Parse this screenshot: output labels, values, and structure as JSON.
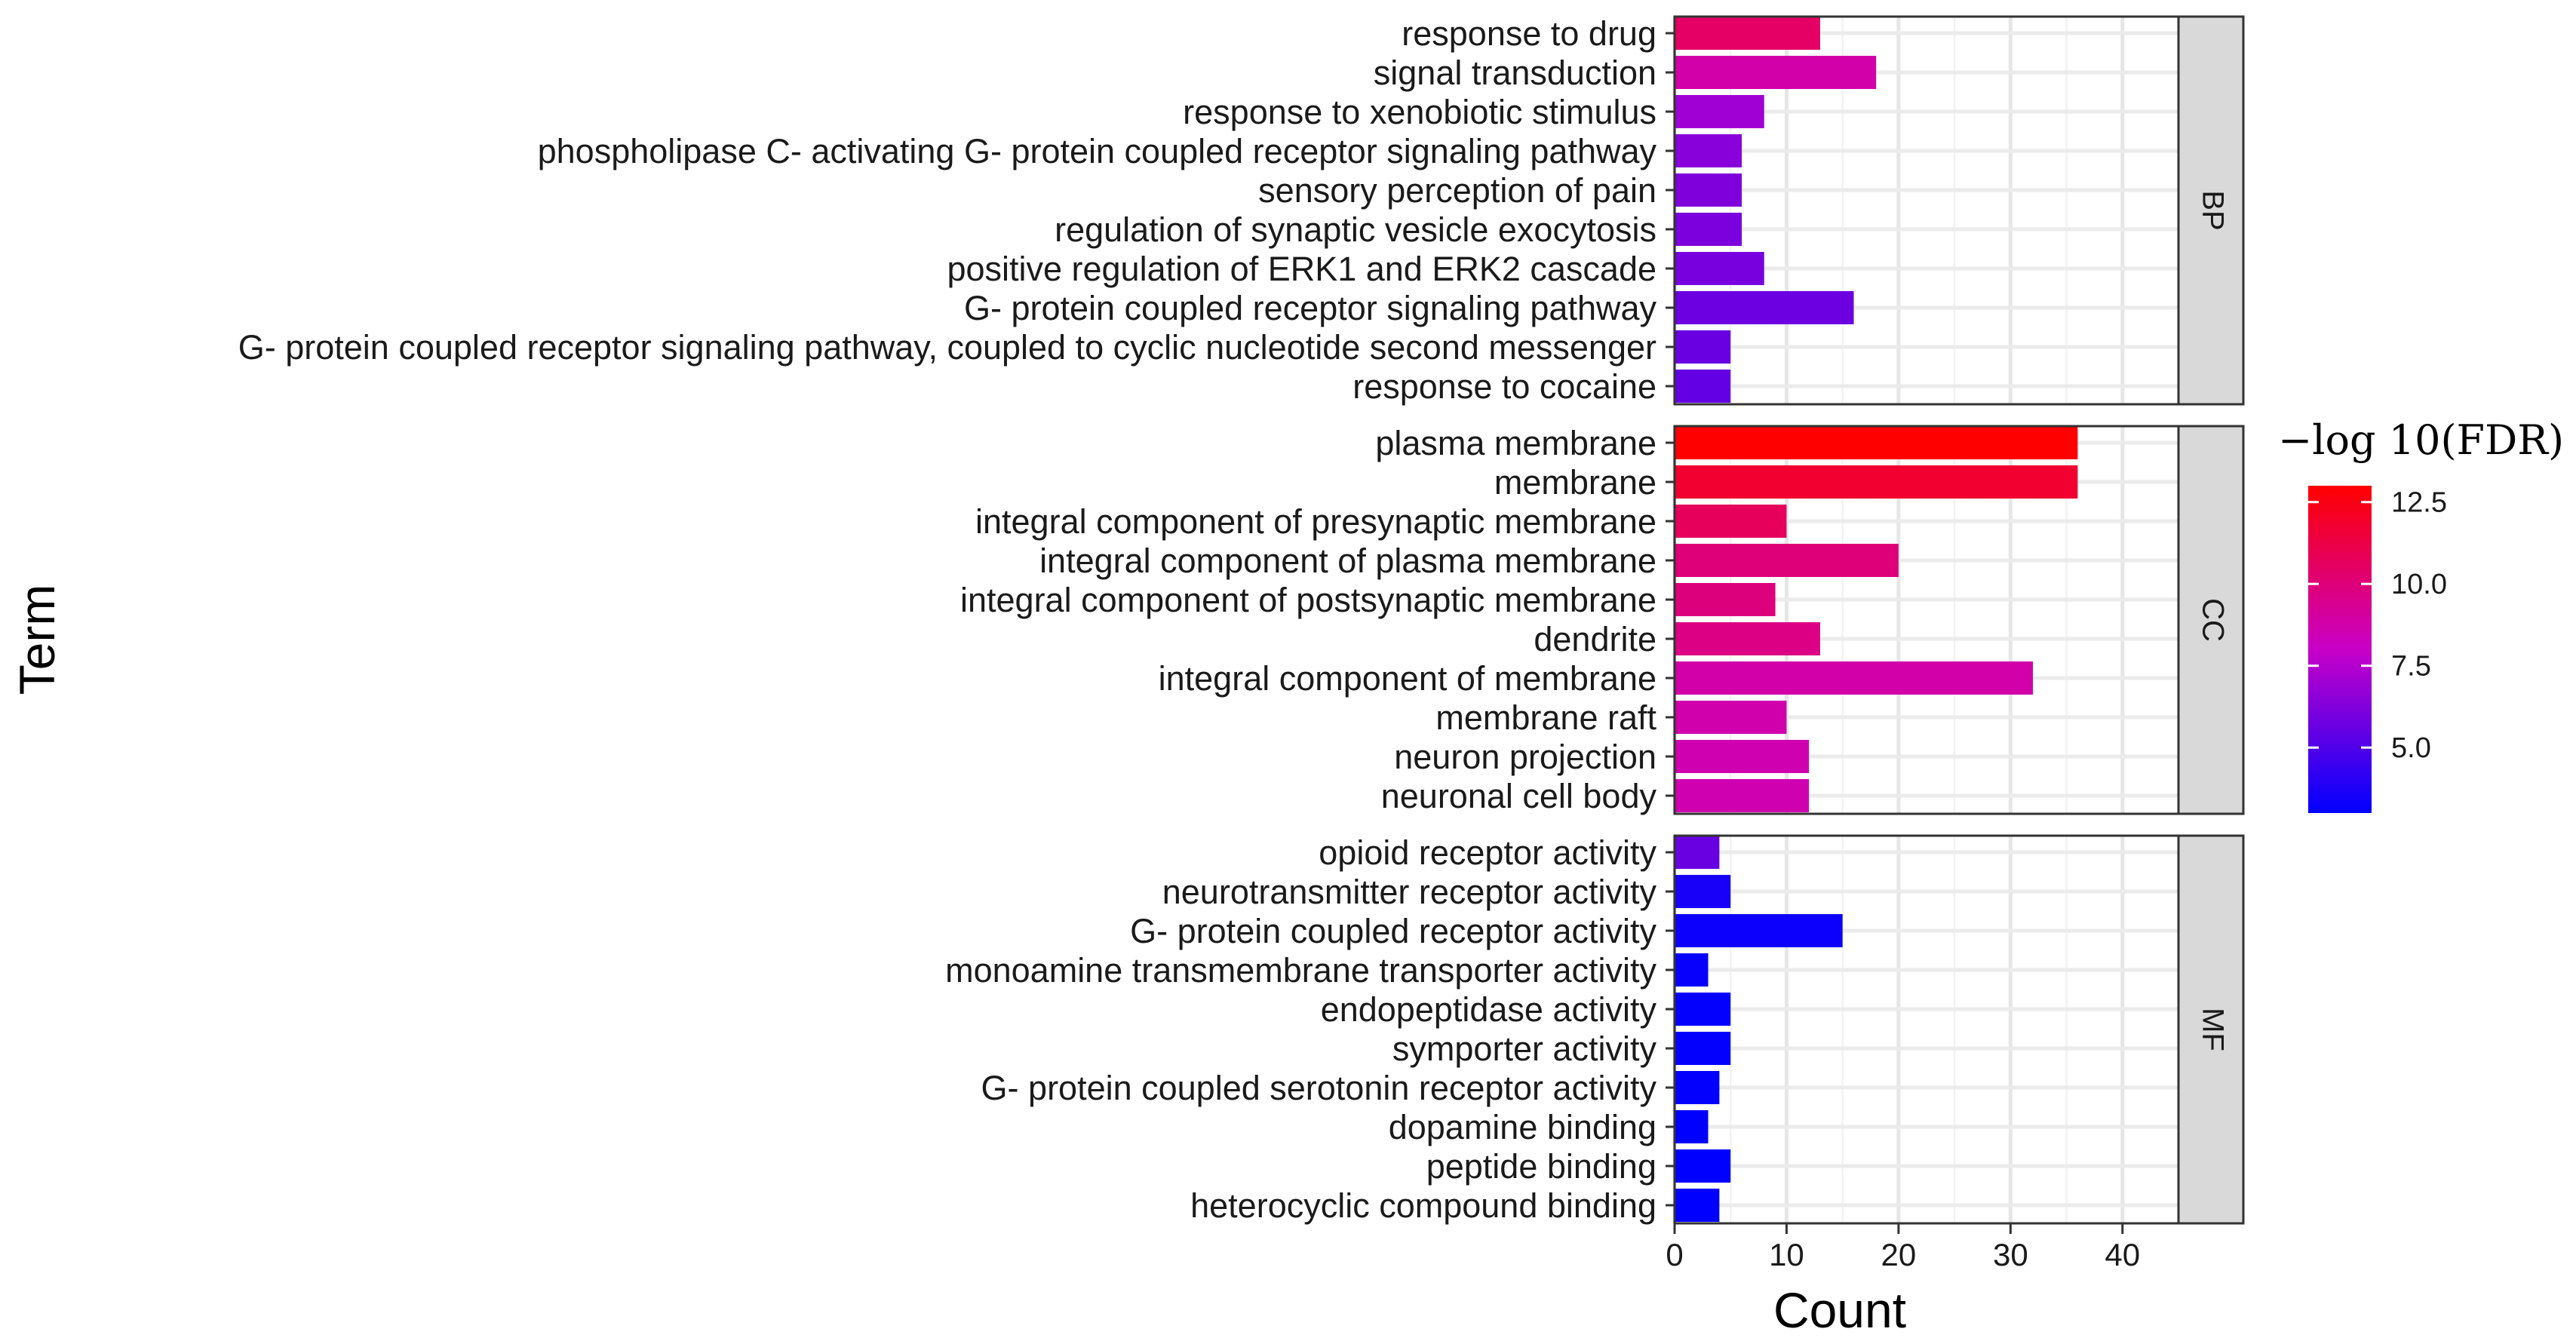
{
  "chart_data": {
    "type": "bar",
    "orientation": "horizontal",
    "xlabel": "Count",
    "ylabel": "Term",
    "xlim": [
      0,
      45
    ],
    "x_ticks": [
      0,
      10,
      20,
      30,
      40
    ],
    "legend": {
      "title": "−log 10(FDR)",
      "placement": "right",
      "range": [
        3.0,
        13.0
      ],
      "ticks": [
        12.5,
        10.0,
        7.5,
        5.0
      ],
      "colors": [
        "#0000ff",
        "#ff0000"
      ]
    },
    "panels": [
      {
        "name": "BP",
        "terms": [
          {
            "label": "response to drug",
            "count": 13,
            "fdr": 10.5
          },
          {
            "label": "signal transduction",
            "count": 18,
            "fdr": 8.8
          },
          {
            "label": "response to xenobiotic stimulus",
            "count": 8,
            "fdr": 7.0
          },
          {
            "label": "phospholipase C- activating G- protein coupled receptor signaling pathway",
            "count": 6,
            "fdr": 6.4
          },
          {
            "label": "sensory perception of pain",
            "count": 6,
            "fdr": 6.2
          },
          {
            "label": "regulation of synaptic vesicle exocytosis",
            "count": 6,
            "fdr": 6.1
          },
          {
            "label": "positive regulation of ERK1 and ERK2 cascade",
            "count": 8,
            "fdr": 6.0
          },
          {
            "label": "G- protein coupled receptor signaling pathway",
            "count": 16,
            "fdr": 5.7
          },
          {
            "label": "G- protein coupled receptor signaling pathway, coupled to cyclic nucleotide second messenger",
            "count": 5,
            "fdr": 5.6
          },
          {
            "label": "response to cocaine",
            "count": 5,
            "fdr": 5.5
          }
        ]
      },
      {
        "name": "CC",
        "terms": [
          {
            "label": "plasma membrane",
            "count": 36,
            "fdr": 13.0
          },
          {
            "label": "membrane",
            "count": 36,
            "fdr": 11.8
          },
          {
            "label": "integral component of presynaptic membrane",
            "count": 10,
            "fdr": 10.7
          },
          {
            "label": "integral component of plasma membrane",
            "count": 20,
            "fdr": 10.0
          },
          {
            "label": "integral component of postsynaptic membrane",
            "count": 9,
            "fdr": 9.9
          },
          {
            "label": "dendrite",
            "count": 13,
            "fdr": 9.7
          },
          {
            "label": "integral component of membrane",
            "count": 32,
            "fdr": 8.8
          },
          {
            "label": "membrane raft",
            "count": 10,
            "fdr": 8.7
          },
          {
            "label": "neuron projection",
            "count": 12,
            "fdr": 8.6
          },
          {
            "label": "neuronal cell body",
            "count": 12,
            "fdr": 8.6
          }
        ]
      },
      {
        "name": "MF",
        "terms": [
          {
            "label": "opioid receptor activity",
            "count": 4,
            "fdr": 5.6
          },
          {
            "label": "neurotransmitter receptor activity",
            "count": 5,
            "fdr": 3.6
          },
          {
            "label": "G- protein coupled receptor activity",
            "count": 15,
            "fdr": 3.3
          },
          {
            "label": "monoamine transmembrane transporter activity",
            "count": 3,
            "fdr": 3.2
          },
          {
            "label": "endopeptidase activity",
            "count": 5,
            "fdr": 3.1
          },
          {
            "label": "symporter activity",
            "count": 5,
            "fdr": 3.1
          },
          {
            "label": "G- protein coupled serotonin receptor activity",
            "count": 4,
            "fdr": 3.1
          },
          {
            "label": "dopamine binding",
            "count": 3,
            "fdr": 3.0
          },
          {
            "label": "peptide binding",
            "count": 5,
            "fdr": 3.0
          },
          {
            "label": "heterocyclic compound binding",
            "count": 4,
            "fdr": 3.0
          }
        ]
      }
    ]
  }
}
